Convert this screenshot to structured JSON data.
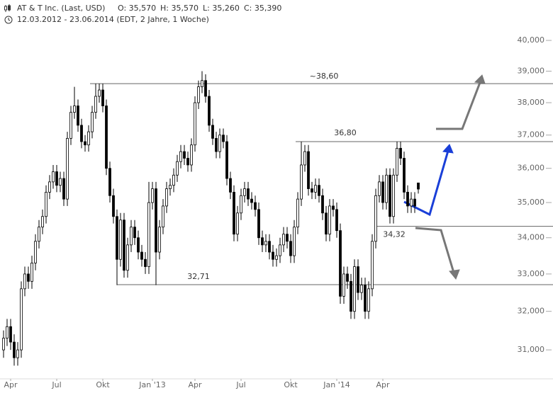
{
  "chart_data": {
    "type": "candlestick",
    "title": "AT & T Inc. (Last, USD)",
    "quote": [
      "O: 35,570",
      "H: 35,570",
      "L: 35,260",
      "C: 35,390"
    ],
    "subtitle": "12.03.2012 - 23.06.2014 (EDT, 2 Jahre, 1 Woche)",
    "log_scale": true,
    "color": "#000000",
    "ylim": [
      30.5,
      40.4
    ],
    "yticks": [
      {
        "value": 31,
        "label": "31,000"
      },
      {
        "value": 32,
        "label": "32,000"
      },
      {
        "value": 33,
        "label": "33,000"
      },
      {
        "value": 34,
        "label": "34,000"
      },
      {
        "value": 35,
        "label": "35,000"
      },
      {
        "value": 36,
        "label": "36,000"
      },
      {
        "value": 37,
        "label": "37,000"
      },
      {
        "value": 38,
        "label": "38,000"
      },
      {
        "value": 39,
        "label": "39,000"
      },
      {
        "value": 40,
        "label": "40,000"
      }
    ],
    "categories": [
      null,
      null,
      "Apr",
      null,
      null,
      null,
      null,
      null,
      null,
      null,
      null,
      null,
      null,
      null,
      null,
      "Jul",
      null,
      null,
      null,
      null,
      null,
      null,
      null,
      null,
      null,
      null,
      null,
      null,
      "Okt",
      null,
      null,
      null,
      null,
      null,
      null,
      null,
      null,
      null,
      null,
      null,
      null,
      null,
      "Jan '13",
      null,
      null,
      null,
      null,
      null,
      null,
      null,
      null,
      null,
      null,
      null,
      "Apr",
      null,
      null,
      null,
      null,
      null,
      null,
      null,
      null,
      null,
      null,
      null,
      null,
      "Jul",
      null,
      null,
      null,
      null,
      null,
      null,
      null,
      null,
      null,
      null,
      null,
      null,
      null,
      "Okt",
      null,
      null,
      null,
      null,
      null,
      null,
      null,
      null,
      null,
      null,
      null,
      null,
      "Jan '14",
      null,
      null,
      null,
      null,
      null,
      null,
      null,
      null,
      null,
      null,
      null,
      null,
      "Apr",
      null,
      null,
      null,
      null,
      null,
      null,
      null,
      null,
      null,
      null
    ],
    "open": [
      31.0,
      31.3,
      31.6,
      31.2,
      30.8,
      31.0,
      32.6,
      33.0,
      32.8,
      33.3,
      33.9,
      34.3,
      34.6,
      35.3,
      35.6,
      35.9,
      35.5,
      35.7,
      35.1,
      36.9,
      37.7,
      37.9,
      37.3,
      36.8,
      36.7,
      37.1,
      37.7,
      38.2,
      38.4,
      37.9,
      36.0,
      35.2,
      34.6,
      33.4,
      34.5,
      33.1,
      33.8,
      34.3,
      34.0,
      33.6,
      33.4,
      33.2,
      35.0,
      35.4,
      33.6,
      34.3,
      34.9,
      35.4,
      35.5,
      35.8,
      36.2,
      36.5,
      36.3,
      36.1,
      36.7,
      38.0,
      38.5,
      38.7,
      38.2,
      37.3,
      36.9,
      36.5,
      37.0,
      36.8,
      35.7,
      35.3,
      34.1,
      34.7,
      35.2,
      35.4,
      35.1,
      35.0,
      34.8,
      34.0,
      33.8,
      33.9,
      33.6,
      33.4,
      33.5,
      33.8,
      34.1,
      33.9,
      33.5,
      34.3,
      35.1,
      36.1,
      36.5,
      35.4,
      35.3,
      35.5,
      35.2,
      34.7,
      34.1,
      34.9,
      34.8,
      34.2,
      32.4,
      33.0,
      32.8,
      32.0,
      33.2,
      32.5,
      32.7,
      32.0,
      32.6,
      33.9,
      35.2,
      35.6,
      35.0,
      35.8,
      34.6,
      35.8,
      36.6,
      36.3,
      35.3,
      34.9,
      35.1,
      35.57
    ],
    "high": [
      31.5,
      31.8,
      31.8,
      31.4,
      31.2,
      32.8,
      33.2,
      33.2,
      33.5,
      34.1,
      34.5,
      34.8,
      35.5,
      35.8,
      36.1,
      36.1,
      35.9,
      35.9,
      37.1,
      37.9,
      38.5,
      38.1,
      37.5,
      37.0,
      37.3,
      37.9,
      38.6,
      38.6,
      38.6,
      38.1,
      36.2,
      35.4,
      34.8,
      34.7,
      34.7,
      34.0,
      34.5,
      34.5,
      34.2,
      33.8,
      33.6,
      35.6,
      35.6,
      35.6,
      34.5,
      35.1,
      35.6,
      35.7,
      36.0,
      36.4,
      36.7,
      36.7,
      36.5,
      36.9,
      38.2,
      38.7,
      39.0,
      38.9,
      38.4,
      37.5,
      37.1,
      37.2,
      37.2,
      37.0,
      35.9,
      35.5,
      34.9,
      35.4,
      35.6,
      35.6,
      35.3,
      35.2,
      35.0,
      34.2,
      34.1,
      34.1,
      33.8,
      33.7,
      34.0,
      34.3,
      34.3,
      34.1,
      34.5,
      35.3,
      36.8,
      36.7,
      36.7,
      35.6,
      35.7,
      35.7,
      35.4,
      34.9,
      35.1,
      35.1,
      35.0,
      34.4,
      33.2,
      33.2,
      33.0,
      33.4,
      33.4,
      32.9,
      32.9,
      32.8,
      34.1,
      35.4,
      35.8,
      35.8,
      36.0,
      36.0,
      36.0,
      36.8,
      36.8,
      36.5,
      35.5,
      35.3,
      35.3,
      35.57
    ],
    "low": [
      30.8,
      31.1,
      31.0,
      30.6,
      30.6,
      30.8,
      32.4,
      32.6,
      32.6,
      33.1,
      33.7,
      34.1,
      34.4,
      35.1,
      35.4,
      35.3,
      35.3,
      34.9,
      34.9,
      36.7,
      37.5,
      37.1,
      36.6,
      36.5,
      36.5,
      36.9,
      37.5,
      38.0,
      37.7,
      35.8,
      35.0,
      34.4,
      32.7,
      33.2,
      32.9,
      32.9,
      33.6,
      33.8,
      33.4,
      33.2,
      33.0,
      33.0,
      34.8,
      32.7,
      33.4,
      34.1,
      34.7,
      35.2,
      35.3,
      35.6,
      36.0,
      36.1,
      35.9,
      35.9,
      36.5,
      37.8,
      38.3,
      38.0,
      37.1,
      36.7,
      36.3,
      36.3,
      36.6,
      35.5,
      35.1,
      33.9,
      33.9,
      34.5,
      35.0,
      34.9,
      34.8,
      34.6,
      33.8,
      33.6,
      33.6,
      33.4,
      33.2,
      33.2,
      33.3,
      33.6,
      33.7,
      33.3,
      33.3,
      34.1,
      34.9,
      35.9,
      35.2,
      35.1,
      35.1,
      35.0,
      34.5,
      33.9,
      33.9,
      34.6,
      34.0,
      32.2,
      32.2,
      32.6,
      31.8,
      31.8,
      32.3,
      32.3,
      31.8,
      31.8,
      32.4,
      33.7,
      35.0,
      34.8,
      34.8,
      34.4,
      34.4,
      35.6,
      36.1,
      35.1,
      34.7,
      34.7,
      34.7,
      35.26
    ],
    "close": [
      31.3,
      31.6,
      31.2,
      30.8,
      31.0,
      32.6,
      33.0,
      32.8,
      33.3,
      33.9,
      34.3,
      34.6,
      35.3,
      35.6,
      35.9,
      35.5,
      35.7,
      35.1,
      36.9,
      37.7,
      37.9,
      37.3,
      36.8,
      36.7,
      37.1,
      37.7,
      38.2,
      38.4,
      37.9,
      36.0,
      35.2,
      34.6,
      33.4,
      34.5,
      33.1,
      33.8,
      34.3,
      34.0,
      33.6,
      33.4,
      33.2,
      35.0,
      35.4,
      33.6,
      34.3,
      34.9,
      35.4,
      35.5,
      35.8,
      36.2,
      36.5,
      36.3,
      36.1,
      36.7,
      38.0,
      38.5,
      38.7,
      38.2,
      37.3,
      36.9,
      36.5,
      37.0,
      36.8,
      35.7,
      35.3,
      34.1,
      34.7,
      35.2,
      35.4,
      35.1,
      35.0,
      34.8,
      34.0,
      33.8,
      33.9,
      33.6,
      33.4,
      33.5,
      33.8,
      34.1,
      33.9,
      33.5,
      34.3,
      35.1,
      36.1,
      36.5,
      35.4,
      35.3,
      35.5,
      35.2,
      34.7,
      34.1,
      34.9,
      34.8,
      34.2,
      32.4,
      33.0,
      32.8,
      32.0,
      33.2,
      32.5,
      32.7,
      32.0,
      32.6,
      33.9,
      35.2,
      35.6,
      35.0,
      35.8,
      34.6,
      35.8,
      36.6,
      36.3,
      35.3,
      34.9,
      35.1,
      34.9,
      35.39
    ],
    "levels": [
      {
        "value": 38.6,
        "label": "~38,60"
      },
      {
        "value": 36.8,
        "label": "36,80"
      },
      {
        "value": 34.32,
        "label": "34,32"
      },
      {
        "value": 32.71,
        "label": "32,71"
      }
    ]
  }
}
